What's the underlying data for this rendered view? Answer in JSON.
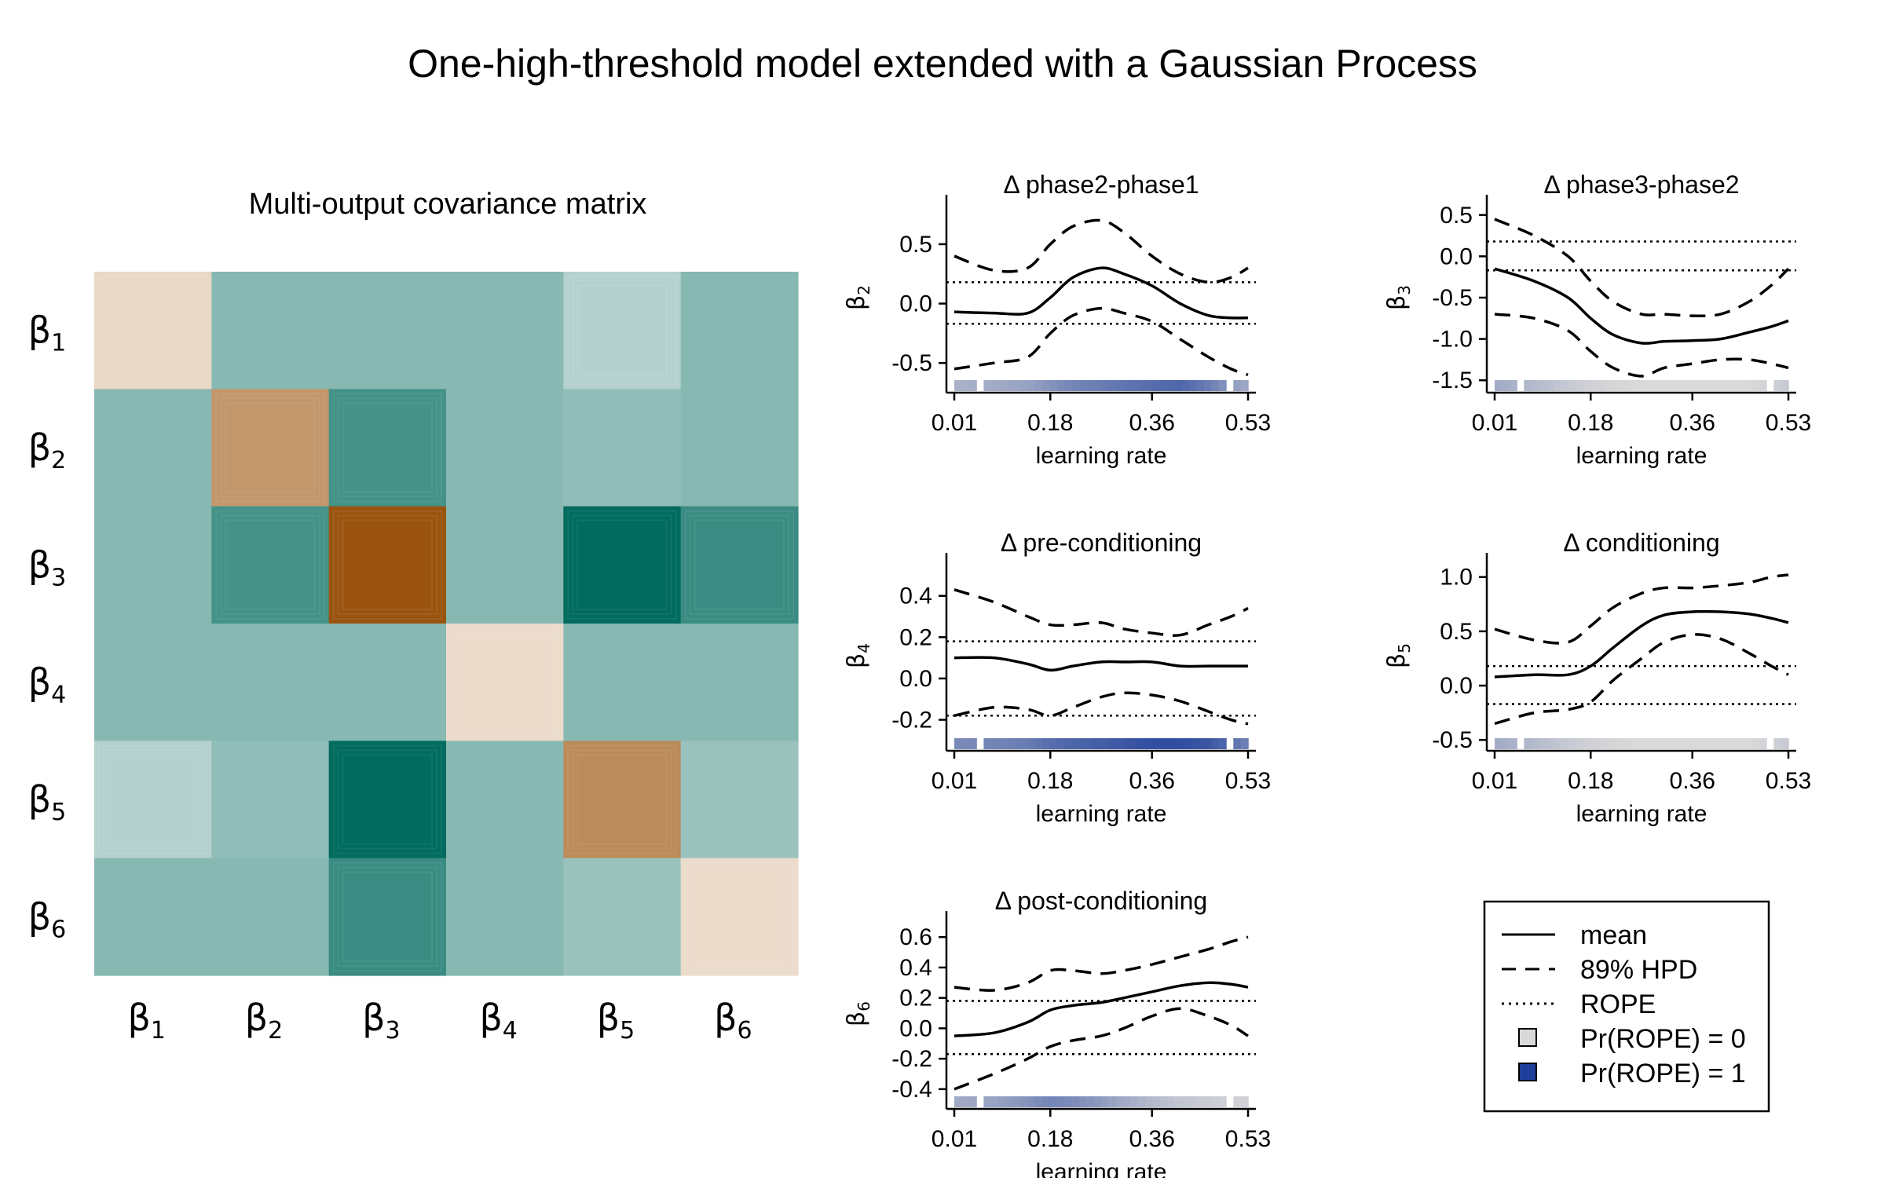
{
  "figure": {
    "title": "One-high-threshold model extended with a Gaussian Process"
  },
  "chart_data": [
    {
      "type": "heatmap",
      "title": "Multi-output covariance matrix",
      "row_labels": [
        "β1",
        "β2",
        "β3",
        "β4",
        "β5",
        "β6"
      ],
      "col_labels": [
        "β1",
        "β2",
        "β3",
        "β4",
        "β5",
        "β6"
      ],
      "block_values": [
        [
          1.0,
          0.0,
          0.0,
          0.0,
          0.25,
          0.0
        ],
        [
          0.0,
          1.55,
          -0.35,
          0.0,
          0.05,
          0.0
        ],
        [
          0.0,
          -0.35,
          2.1,
          0.0,
          -0.7,
          -0.4
        ],
        [
          0.0,
          0.0,
          0.0,
          0.95,
          0.0,
          0.0
        ],
        [
          0.25,
          0.05,
          -0.7,
          0.0,
          1.65,
          0.1
        ],
        [
          0.0,
          0.0,
          -0.4,
          0.0,
          0.1,
          0.95
        ]
      ],
      "colormap": {
        "negative": "#006b5e",
        "zero": "#88b8b2",
        "mid": "#f5f5f5",
        "positive": "#9a5410"
      }
    },
    {
      "type": "line",
      "title": "Δ phase2-phase1",
      "ylabel": "β2",
      "xlabel": "learning rate",
      "xticks": [
        "0.01",
        "0.18",
        "0.36",
        "0.53"
      ],
      "yticks": [
        -0.5,
        0.0,
        0.5
      ],
      "xlim": [
        0.01,
        0.53
      ],
      "ylim": [
        -0.75,
        0.85
      ],
      "rope": [
        -0.17,
        0.18
      ],
      "x": [
        0.01,
        0.08,
        0.14,
        0.18,
        0.22,
        0.27,
        0.31,
        0.36,
        0.41,
        0.46,
        0.5,
        0.53
      ],
      "mean": [
        -0.07,
        -0.08,
        -0.08,
        0.05,
        0.22,
        0.3,
        0.25,
        0.15,
        0.0,
        -0.1,
        -0.12,
        -0.12
      ],
      "hpd_upper": [
        0.4,
        0.28,
        0.3,
        0.5,
        0.65,
        0.7,
        0.6,
        0.4,
        0.25,
        0.18,
        0.22,
        0.3
      ],
      "hpd_lower": [
        -0.55,
        -0.5,
        -0.45,
        -0.25,
        -0.1,
        -0.04,
        -0.08,
        -0.15,
        -0.3,
        -0.45,
        -0.55,
        -0.6
      ],
      "pr_rope_strip": [
        0.25,
        0.3,
        0.35,
        0.45,
        0.55,
        0.6,
        0.65,
        0.7,
        0.75,
        0.6,
        0.4,
        0.3
      ]
    },
    {
      "type": "line",
      "title": "Δ phase3-phase2",
      "ylabel": "β3",
      "xlabel": "learning rate",
      "xticks": [
        "0.01",
        "0.18",
        "0.36",
        "0.53"
      ],
      "yticks": [
        -1.5,
        -1.0,
        -0.5,
        0.0,
        0.5
      ],
      "xlim": [
        0.01,
        0.53
      ],
      "ylim": [
        -1.65,
        0.65
      ],
      "rope": [
        -0.17,
        0.18
      ],
      "x": [
        0.01,
        0.08,
        0.14,
        0.18,
        0.22,
        0.27,
        0.31,
        0.36,
        0.41,
        0.46,
        0.5,
        0.53
      ],
      "mean": [
        -0.15,
        -0.3,
        -0.5,
        -0.75,
        -0.95,
        -1.05,
        -1.03,
        -1.02,
        -1.0,
        -0.92,
        -0.85,
        -0.78
      ],
      "hpd_upper": [
        0.45,
        0.25,
        0.0,
        -0.3,
        -0.55,
        -0.7,
        -0.7,
        -0.72,
        -0.7,
        -0.55,
        -0.35,
        -0.15
      ],
      "hpd_lower": [
        -0.7,
        -0.75,
        -0.9,
        -1.15,
        -1.35,
        -1.45,
        -1.35,
        -1.3,
        -1.25,
        -1.25,
        -1.3,
        -1.35
      ],
      "pr_rope_strip": [
        0.3,
        0.2,
        0.1,
        0.05,
        0.02,
        0.0,
        0.0,
        0.0,
        0.0,
        0.0,
        0.05,
        0.1
      ]
    },
    {
      "type": "line",
      "title": "Δ pre-conditioning",
      "ylabel": "β4",
      "xlabel": "learning rate",
      "xticks": [
        "0.01",
        "0.18",
        "0.36",
        "0.53"
      ],
      "yticks": [
        -0.2,
        0.0,
        0.2,
        0.4
      ],
      "xlim": [
        0.01,
        0.53
      ],
      "ylim": [
        -0.35,
        0.57
      ],
      "rope": [
        -0.18,
        0.18
      ],
      "x": [
        0.01,
        0.08,
        0.14,
        0.18,
        0.22,
        0.27,
        0.31,
        0.36,
        0.41,
        0.46,
        0.5,
        0.53
      ],
      "mean": [
        0.1,
        0.1,
        0.07,
        0.04,
        0.06,
        0.08,
        0.08,
        0.08,
        0.06,
        0.06,
        0.06,
        0.06
      ],
      "hpd_upper": [
        0.43,
        0.37,
        0.3,
        0.26,
        0.26,
        0.27,
        0.24,
        0.22,
        0.21,
        0.26,
        0.3,
        0.34
      ],
      "hpd_lower": [
        -0.18,
        -0.14,
        -0.15,
        -0.18,
        -0.14,
        -0.09,
        -0.07,
        -0.08,
        -0.11,
        -0.16,
        -0.2,
        -0.22
      ],
      "pr_rope_strip": [
        0.5,
        0.55,
        0.6,
        0.7,
        0.75,
        0.8,
        0.85,
        0.9,
        0.9,
        0.85,
        0.7,
        0.55
      ]
    },
    {
      "type": "line",
      "title": "Δ conditioning",
      "ylabel": "β5",
      "xlabel": "learning rate",
      "xticks": [
        "0.01",
        "0.18",
        "0.36",
        "0.53"
      ],
      "yticks": [
        -0.5,
        0.0,
        0.5,
        1.0
      ],
      "xlim": [
        0.01,
        0.53
      ],
      "ylim": [
        -0.6,
        1.15
      ],
      "rope": [
        -0.17,
        0.18
      ],
      "x": [
        0.01,
        0.08,
        0.14,
        0.18,
        0.22,
        0.27,
        0.31,
        0.36,
        0.41,
        0.46,
        0.5,
        0.53
      ],
      "mean": [
        0.08,
        0.1,
        0.1,
        0.18,
        0.35,
        0.55,
        0.65,
        0.68,
        0.68,
        0.66,
        0.62,
        0.58
      ],
      "hpd_upper": [
        0.52,
        0.42,
        0.4,
        0.55,
        0.72,
        0.85,
        0.9,
        0.9,
        0.92,
        0.95,
        1.0,
        1.02
      ],
      "hpd_lower": [
        -0.35,
        -0.25,
        -0.22,
        -0.15,
        0.05,
        0.25,
        0.4,
        0.47,
        0.43,
        0.3,
        0.18,
        0.1
      ],
      "pr_rope_strip": [
        0.3,
        0.2,
        0.1,
        0.05,
        0.02,
        0.0,
        0.0,
        0.0,
        0.0,
        0.0,
        0.05,
        0.1
      ]
    },
    {
      "type": "line",
      "title": "Δ post-conditioning",
      "ylabel": "β6",
      "xlabel": "learning rate",
      "xticks": [
        "0.01",
        "0.18",
        "0.36",
        "0.53"
      ],
      "yticks": [
        -0.4,
        -0.2,
        0.0,
        0.2,
        0.4,
        0.6
      ],
      "xlim": [
        0.01,
        0.53
      ],
      "ylim": [
        -0.53,
        0.72
      ],
      "rope": [
        -0.17,
        0.18
      ],
      "x": [
        0.01,
        0.08,
        0.14,
        0.18,
        0.22,
        0.27,
        0.31,
        0.36,
        0.41,
        0.46,
        0.5,
        0.53
      ],
      "mean": [
        -0.05,
        -0.03,
        0.04,
        0.12,
        0.15,
        0.17,
        0.2,
        0.24,
        0.28,
        0.3,
        0.29,
        0.27
      ],
      "hpd_upper": [
        0.27,
        0.25,
        0.3,
        0.38,
        0.38,
        0.36,
        0.38,
        0.42,
        0.47,
        0.52,
        0.57,
        0.6
      ],
      "hpd_lower": [
        -0.4,
        -0.3,
        -0.2,
        -0.12,
        -0.08,
        -0.05,
        0.0,
        0.08,
        0.13,
        0.08,
        0.02,
        -0.05
      ],
      "pr_rope_strip": [
        0.3,
        0.35,
        0.45,
        0.55,
        0.5,
        0.4,
        0.3,
        0.2,
        0.12,
        0.08,
        0.05,
        0.05
      ]
    }
  ],
  "legend": {
    "placement": "bottom-right",
    "items": [
      {
        "style": "solid",
        "label": "mean"
      },
      {
        "style": "dashed",
        "label": "89% HPD"
      },
      {
        "style": "dotted",
        "label": "ROPE"
      },
      {
        "style": "square-light",
        "label": "Pr(ROPE) = 0",
        "color": "#d9d9d9"
      },
      {
        "style": "square-dark",
        "label": "Pr(ROPE) = 1",
        "color": "#1f3f9a"
      }
    ]
  }
}
